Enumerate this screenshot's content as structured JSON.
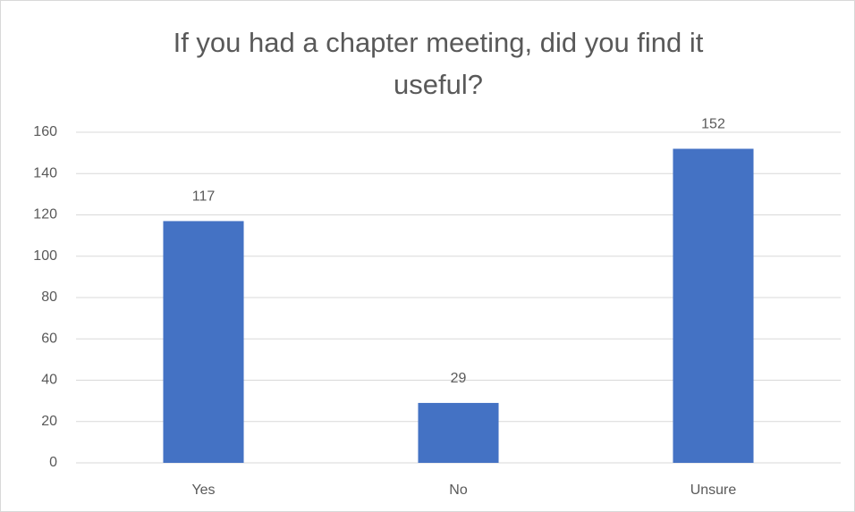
{
  "chart_data": {
    "type": "bar",
    "title": "If you had a chapter meeting, did you find it useful?",
    "categories": [
      "Yes",
      "No",
      "Unsure"
    ],
    "values": [
      117,
      29,
      152
    ],
    "color": "#4472c4",
    "ylim": [
      0,
      160
    ],
    "yticks": [
      0,
      20,
      40,
      60,
      80,
      100,
      120,
      140,
      160
    ],
    "grid": true,
    "data_labels": true
  }
}
